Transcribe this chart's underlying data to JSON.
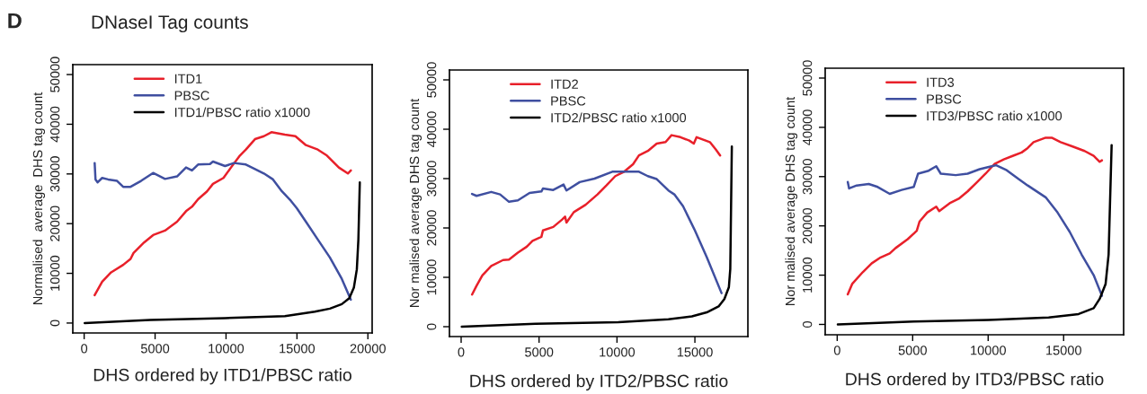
{
  "chart_data": [
    {
      "type": "line",
      "title": "DNaseI Tag counts",
      "annotations": [
        "D"
      ],
      "xlabel": "DHS ordered by ITD1/PBSC ratio",
      "ylabel": "Normalised  average  DHS tag count",
      "xlim": [
        -800,
        20300
      ],
      "ylim": [
        -2000,
        52000
      ],
      "xticks": [
        0,
        5000,
        10000,
        15000,
        20000
      ],
      "yticks": [
        0,
        10000,
        20000,
        30000,
        40000,
        50000
      ],
      "legend": "top",
      "grid": false,
      "series": [
        {
          "name": "ITD1",
          "color": "#e8202a",
          "x": [
            740,
            1270,
            1900,
            2750,
            3270,
            3480,
            4220,
            4860,
            5700,
            6550,
            7180,
            7600,
            8030,
            8660,
            9080,
            9820,
            10350,
            10980,
            11400,
            12040,
            12670,
            13200,
            14150,
            14890,
            15630,
            16470,
            17110,
            17950,
            18590,
            18800
          ],
          "values": [
            5600,
            8300,
            10200,
            11700,
            12900,
            14100,
            16200,
            17700,
            18600,
            20400,
            22500,
            23400,
            24900,
            26500,
            28000,
            29200,
            31300,
            33700,
            34900,
            37000,
            37600,
            38400,
            37900,
            37600,
            35800,
            34900,
            33700,
            31300,
            30100,
            30700
          ]
        },
        {
          "name": "PBSC",
          "color": "#3f4fa0",
          "x": [
            740,
            800,
            950,
            1270,
            1690,
            2320,
            2750,
            3270,
            4010,
            4860,
            5700,
            6550,
            7180,
            7600,
            8030,
            8870,
            9080,
            9930,
            10560,
            11400,
            12040,
            12670,
            13310,
            13940,
            14570,
            14990,
            15630,
            16470,
            17320,
            18160,
            18800
          ],
          "values": [
            32200,
            28900,
            28300,
            29200,
            28900,
            28600,
            27400,
            27400,
            28600,
            30200,
            29000,
            29500,
            31300,
            30700,
            31900,
            32000,
            32500,
            31600,
            32200,
            31900,
            31000,
            30100,
            28900,
            26500,
            24600,
            23100,
            20400,
            16800,
            13200,
            8900,
            4700
          ]
        },
        {
          "name": "ITD1/PBSC ratio x1000",
          "color": "#000000",
          "x": [
            40,
            4650,
            9930,
            14150,
            16260,
            17320,
            18160,
            18690,
            19010,
            19220,
            19330,
            19430
          ],
          "values": [
            0,
            600,
            1000,
            1400,
            2300,
            2900,
            3800,
            5000,
            7100,
            10800,
            16800,
            28300
          ]
        }
      ]
    },
    {
      "type": "line",
      "xlabel": "DHS ordered by ITD2/PBSC ratio",
      "ylabel": "Nor malised average DHS tag count",
      "xlim": [
        -750,
        18400
      ],
      "ylim": [
        -2000,
        52000
      ],
      "xticks": [
        0,
        5000,
        10000,
        15000
      ],
      "yticks": [
        0,
        10000,
        20000,
        30000,
        40000,
        50000
      ],
      "legend": "top",
      "grid": false,
      "series": [
        {
          "name": "ITD2",
          "color": "#e8202a",
          "x": [
            700,
            990,
            1360,
            1930,
            2690,
            3070,
            3640,
            4210,
            4580,
            5150,
            5250,
            5910,
            6480,
            6670,
            6760,
            7230,
            7990,
            8750,
            9320,
            9890,
            10460,
            11030,
            11410,
            11980,
            12550,
            13120,
            13500,
            14070,
            14640,
            14930,
            15110,
            15960,
            16340,
            16620
          ],
          "values": [
            6500,
            8300,
            10400,
            12300,
            13500,
            13600,
            15000,
            16200,
            17400,
            18200,
            19500,
            20200,
            21700,
            22300,
            21100,
            23200,
            24700,
            26800,
            28600,
            30500,
            31400,
            32900,
            34700,
            35600,
            37100,
            37400,
            38800,
            38400,
            37700,
            37100,
            38400,
            37400,
            35900,
            34700
          ]
        },
        {
          "name": "PBSC",
          "color": "#3f4fa0",
          "x": [
            700,
            990,
            1930,
            2500,
            3070,
            3640,
            4390,
            5150,
            5250,
            5910,
            6570,
            6760,
            7610,
            8560,
            9700,
            10460,
            11410,
            11980,
            12550,
            13300,
            13680,
            14240,
            15000,
            15760,
            16710
          ],
          "values": [
            26900,
            26500,
            27300,
            26800,
            25300,
            25600,
            27100,
            27400,
            28000,
            27700,
            28800,
            27600,
            29300,
            30000,
            31400,
            31400,
            31400,
            30500,
            29900,
            27600,
            26800,
            24400,
            19500,
            14100,
            6800
          ]
        },
        {
          "name": "ITD2/PBSC ratio x1000",
          "color": "#000000",
          "x": [
            40,
            4770,
            10080,
            13300,
            14810,
            15760,
            16520,
            16890,
            17180,
            17270,
            17370
          ],
          "values": [
            0,
            600,
            900,
            1500,
            2100,
            2900,
            4100,
            5600,
            8000,
            11700,
            36500
          ]
        }
      ]
    },
    {
      "type": "line",
      "xlabel": "DHS ordered by ITD3/PBSC ratio",
      "ylabel": "Nor malised average DHS tag count",
      "xlim": [
        -795,
        18975
      ],
      "ylim": [
        -2100,
        52000
      ],
      "xticks": [
        0,
        5000,
        10000,
        15000
      ],
      "yticks": [
        0,
        10000,
        20000,
        30000,
        40000,
        50000
      ],
      "legend": "top",
      "grid": false,
      "series": [
        {
          "name": "ITD3",
          "color": "#e8202a",
          "x": [
            700,
            990,
            1690,
            2290,
            2880,
            3480,
            3870,
            4670,
            5270,
            5460,
            5960,
            6560,
            6760,
            7450,
            8050,
            8640,
            9240,
            9830,
            10430,
            11030,
            11620,
            12220,
            12620,
            13010,
            13810,
            14210,
            14800,
            15600,
            16390,
            16990,
            17390,
            17540
          ],
          "values": [
            6100,
            8200,
            10600,
            12400,
            13600,
            14400,
            15500,
            17300,
            19000,
            20900,
            22700,
            23900,
            23000,
            24600,
            25500,
            27000,
            28800,
            30600,
            32600,
            33500,
            34200,
            34900,
            35800,
            37000,
            37900,
            37900,
            37000,
            36100,
            35200,
            34200,
            33000,
            33300
          ]
        },
        {
          "name": "PBSC",
          "color": "#3f4fa0",
          "x": [
            700,
            790,
            1290,
            2090,
            2680,
            3480,
            4270,
            5070,
            5360,
            6060,
            6560,
            6860,
            7850,
            8640,
            9440,
            10230,
            10530,
            11230,
            12020,
            12620,
            13810,
            14600,
            15400,
            16190,
            16990,
            17540
          ],
          "values": [
            28900,
            27600,
            28200,
            28500,
            27900,
            26500,
            27300,
            27900,
            30600,
            31200,
            32100,
            30600,
            30300,
            30600,
            31500,
            32100,
            32300,
            31300,
            29500,
            28200,
            25800,
            22700,
            18800,
            14200,
            10000,
            5800
          ]
        },
        {
          "name": "ITD3/PBSC ratio x1000",
          "color": "#000000",
          "x": [
            40,
            5070,
            10030,
            14010,
            15990,
            16990,
            17390,
            17780,
            17980,
            18180
          ],
          "values": [
            0,
            600,
            900,
            1400,
            2100,
            3300,
            5200,
            8200,
            14200,
            36400
          ]
        }
      ]
    }
  ]
}
